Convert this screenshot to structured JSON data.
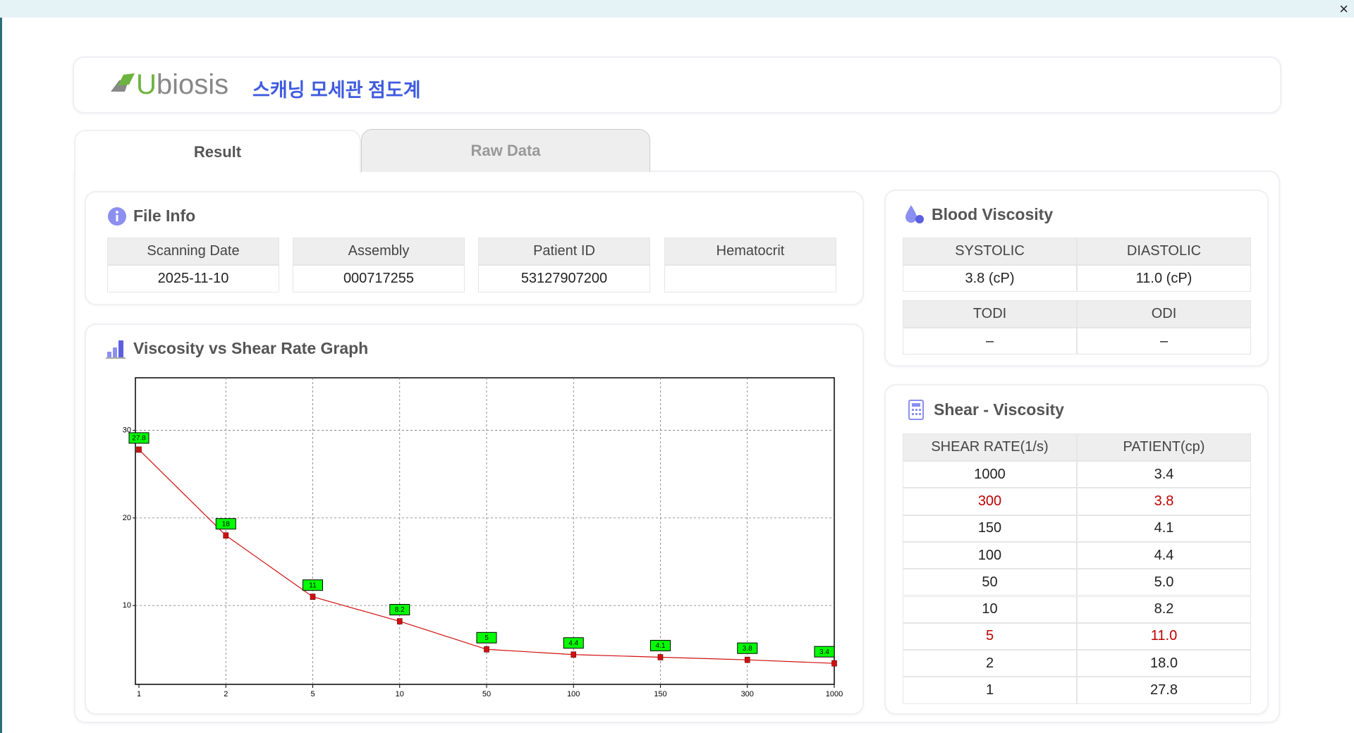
{
  "window": {
    "close": "×"
  },
  "header": {
    "brand": "Ubiosis",
    "title": "스캐닝 모세관 점도계"
  },
  "tabs": [
    "Result",
    "Raw Data"
  ],
  "file_info": {
    "title": "File Info",
    "headers": [
      "Scanning Date",
      "Assembly",
      "Patient ID",
      "Hematocrit"
    ],
    "values": [
      "2025-11-10",
      "000717255",
      "53127907200",
      null
    ]
  },
  "blood_viscosity": {
    "title": "Blood Viscosity",
    "headers1": [
      "SYSTOLIC",
      "DIASTOLIC"
    ],
    "values1": [
      "3.8 (cP)",
      "11.0 (cP)"
    ],
    "headers2": [
      "TODI",
      "ODI"
    ],
    "values2": [
      "–",
      "–"
    ]
  },
  "shear_viscosity": {
    "title": "Shear - Viscosity",
    "headers": [
      "SHEAR RATE(1/s)",
      "PATIENT(cp)"
    ],
    "rows": [
      [
        "1000",
        "3.4"
      ],
      [
        "300",
        "3.8"
      ],
      [
        "150",
        "4.1"
      ],
      [
        "100",
        "4.4"
      ],
      [
        "50",
        "5.0"
      ],
      [
        "10",
        "8.2"
      ],
      [
        "5",
        "11.0"
      ],
      [
        "2",
        "18.0"
      ],
      [
        "1",
        "27.8"
      ]
    ]
  },
  "chart_data": {
    "type": "line",
    "title": "Viscosity vs Shear Rate Graph",
    "categories": [
      "1",
      "2",
      "5",
      "10",
      "50",
      "100",
      "150",
      "300",
      "1000"
    ],
    "values": [
      27.8,
      18,
      11,
      8.2,
      5,
      4.4,
      4.1,
      3.8,
      3.4
    ],
    "color": "#d01010",
    "label_color": "#00ff00",
    "ylim": [
      1,
      36
    ],
    "yticks": [
      10,
      20,
      30
    ],
    "grid": true
  }
}
